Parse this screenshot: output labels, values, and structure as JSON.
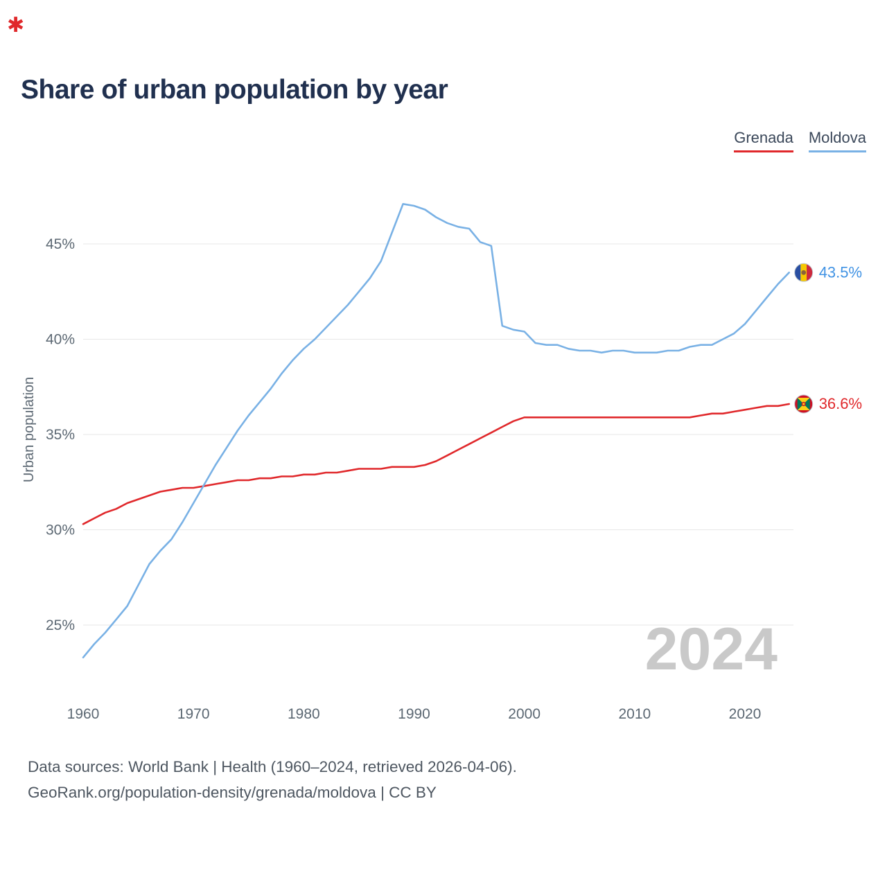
{
  "brand_mark": "✱",
  "title": "Share of urban population by year",
  "legend": [
    {
      "label": "Grenada",
      "color": "#e0282b"
    },
    {
      "label": "Moldova",
      "color": "#79b1e5"
    }
  ],
  "watermark": "2024",
  "end_labels": [
    {
      "series": "Moldova",
      "value_label": "43.5%",
      "color": "#4193e4"
    },
    {
      "series": "Grenada",
      "value_label": "36.6%",
      "color": "#e0282b"
    }
  ],
  "footer": {
    "line1": "Data sources: World Bank | Health (1960–2024, retrieved 2026-04-06).",
    "line2": "GeoRank.org/population-density/grenada/moldova | CC BY"
  },
  "chart_data": {
    "type": "line",
    "title": "Share of urban population by year",
    "xlabel": "",
    "ylabel": "Urban population",
    "grid": true,
    "legend_position": "top-right",
    "x_ticks": [
      1960,
      1970,
      1980,
      1990,
      2000,
      2010,
      2020
    ],
    "y_ticks": [
      25,
      30,
      35,
      40,
      45
    ],
    "y_tick_suffix": "%",
    "xlim": [
      1960,
      2024
    ],
    "ylim": [
      23,
      48
    ],
    "x": [
      1960,
      1961,
      1962,
      1963,
      1964,
      1965,
      1966,
      1967,
      1968,
      1969,
      1970,
      1971,
      1972,
      1973,
      1974,
      1975,
      1976,
      1977,
      1978,
      1979,
      1980,
      1981,
      1982,
      1983,
      1984,
      1985,
      1986,
      1987,
      1988,
      1989,
      1990,
      1991,
      1992,
      1993,
      1994,
      1995,
      1996,
      1997,
      1998,
      1999,
      2000,
      2001,
      2002,
      2003,
      2004,
      2005,
      2006,
      2007,
      2008,
      2009,
      2010,
      2011,
      2012,
      2013,
      2014,
      2015,
      2016,
      2017,
      2018,
      2019,
      2020,
      2021,
      2022,
      2023,
      2024
    ],
    "series": [
      {
        "name": "Grenada",
        "color": "#e0282b",
        "values": [
          30.3,
          30.6,
          30.9,
          31.1,
          31.4,
          31.6,
          31.8,
          32.0,
          32.1,
          32.2,
          32.2,
          32.3,
          32.4,
          32.5,
          32.6,
          32.6,
          32.7,
          32.7,
          32.8,
          32.8,
          32.9,
          32.9,
          33.0,
          33.0,
          33.1,
          33.2,
          33.2,
          33.2,
          33.3,
          33.3,
          33.3,
          33.4,
          33.6,
          33.9,
          34.2,
          34.5,
          34.8,
          35.1,
          35.4,
          35.7,
          35.9,
          35.9,
          35.9,
          35.9,
          35.9,
          35.9,
          35.9,
          35.9,
          35.9,
          35.9,
          35.9,
          35.9,
          35.9,
          35.9,
          35.9,
          35.9,
          36.0,
          36.1,
          36.1,
          36.2,
          36.3,
          36.4,
          36.5,
          36.5,
          36.6
        ]
      },
      {
        "name": "Moldova",
        "color": "#79b1e5",
        "values": [
          23.3,
          24.0,
          24.6,
          25.3,
          26.0,
          27.1,
          28.2,
          28.9,
          29.5,
          30.4,
          31.4,
          32.4,
          33.4,
          34.3,
          35.2,
          36.0,
          36.7,
          37.4,
          38.2,
          38.9,
          39.5,
          40.0,
          40.6,
          41.2,
          41.8,
          42.5,
          43.2,
          44.1,
          45.6,
          47.1,
          47.0,
          46.8,
          46.4,
          46.1,
          45.9,
          45.8,
          45.1,
          44.9,
          40.7,
          40.5,
          40.4,
          39.8,
          39.7,
          39.7,
          39.5,
          39.4,
          39.4,
          39.3,
          39.4,
          39.4,
          39.3,
          39.3,
          39.3,
          39.4,
          39.4,
          39.6,
          39.7,
          39.7,
          40.0,
          40.3,
          40.8,
          41.5,
          42.2,
          42.9,
          43.5
        ]
      }
    ]
  }
}
